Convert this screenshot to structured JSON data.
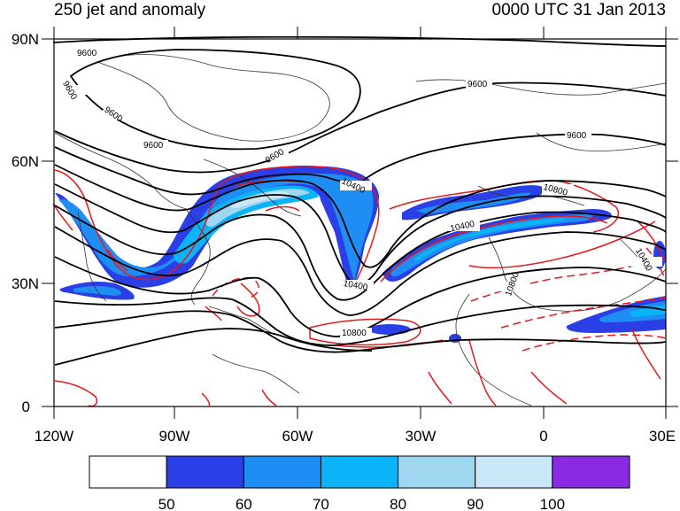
{
  "header": {
    "title_left": "250 jet and anomaly",
    "title_right": "0000 UTC 31 Jan 2013"
  },
  "map": {
    "lat_labels": [
      "90N",
      "60N",
      "30N",
      "0"
    ],
    "lon_labels": [
      "120W",
      "90W",
      "60W",
      "30W",
      "0",
      "30E"
    ],
    "contour_labels": [
      "9600",
      "9600",
      "9600",
      "9600",
      "9600",
      "9600",
      "9600",
      "10400",
      "10400",
      "10400",
      "10400",
      "10800",
      "10800",
      "10800"
    ],
    "colors": {
      "contour": "#000000",
      "anomaly": "#e4191c",
      "coast": "#333333"
    }
  },
  "legend": {
    "labels": [
      "50",
      "60",
      "70",
      "80",
      "90",
      "100"
    ],
    "colors": [
      "#ffffff",
      "#2a3fe6",
      "#1f8ef4",
      "#0bb4f8",
      "#9fd6f0",
      "#c9e7f7",
      "#8a2be2"
    ]
  }
}
